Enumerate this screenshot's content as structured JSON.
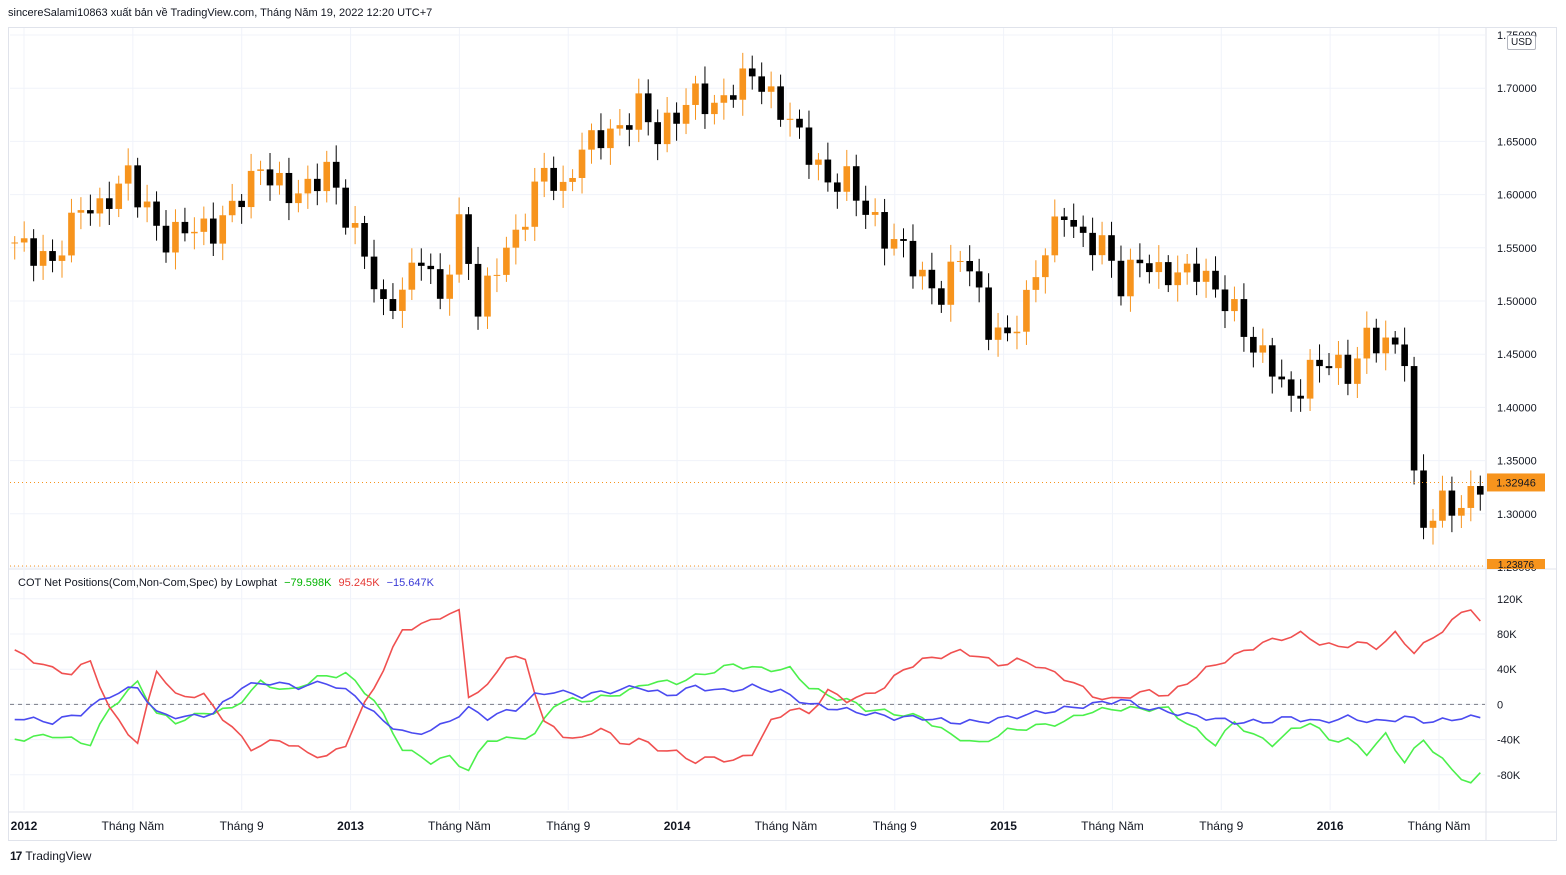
{
  "header": {
    "publisher_line": "sincereSalami10863 xuất bản về TradingView.com, Tháng Năm 19, 2022 12:20 UTC+7"
  },
  "currency_badge": "USD",
  "indicator": {
    "title": "COT Net Positions(Com,Non-Com,Spec) by Lowphat",
    "value_com": "−79.598K",
    "value_noncom": "95.245K",
    "value_spec": "−15.647K"
  },
  "footer": {
    "brand": "TradingView",
    "logo_glyph": "17"
  },
  "colors": {
    "up_candle": "#f7941d",
    "down_candle": "#000000",
    "com_line": "#4cf04c",
    "noncom_line": "#f05050",
    "spec_line": "#4b4bf0",
    "price_tag": "#f7941d",
    "grid": "#f0f3fa"
  },
  "chart_data": [
    {
      "type": "candlestick",
      "title": "",
      "ylim": [
        1.25,
        1.75
      ],
      "y_ticks": [
        "1.75000",
        "1.70000",
        "1.65000",
        "1.60000",
        "1.55000",
        "1.50000",
        "1.45000",
        "1.40000",
        "1.35000",
        "1.30000",
        "1.25000"
      ],
      "last_price_label": "1.32946",
      "last_price": 1.32946,
      "lowest_marker_label": "1.23876",
      "x_labels": [
        "2012",
        "Tháng Năm",
        "Tháng 9",
        "2013",
        "Tháng Năm",
        "Tháng 9",
        "2014",
        "Tháng Năm",
        "Tháng 9",
        "2015",
        "Tháng Năm",
        "Tháng 9",
        "2016",
        "Tháng Năm"
      ],
      "close_path": [
        [
          0,
          1.555
        ],
        [
          4,
          1.535
        ],
        [
          7,
          1.59
        ],
        [
          9,
          1.585
        ],
        [
          12,
          1.62
        ],
        [
          13,
          1.6
        ],
        [
          16,
          1.555
        ],
        [
          18,
          1.57
        ],
        [
          21,
          1.565
        ],
        [
          24,
          1.6
        ],
        [
          26,
          1.625
        ],
        [
          29,
          1.6
        ],
        [
          31,
          1.605
        ],
        [
          33,
          1.625
        ],
        [
          35,
          1.58
        ],
        [
          37,
          1.545
        ],
        [
          39,
          1.49
        ],
        [
          41,
          1.51
        ],
        [
          43,
          1.545
        ],
        [
          45,
          1.5
        ],
        [
          47,
          1.57
        ],
        [
          48,
          1.54
        ],
        [
          49,
          1.49
        ],
        [
          51,
          1.535
        ],
        [
          53,
          1.56
        ],
        [
          56,
          1.625
        ],
        [
          58,
          1.6
        ],
        [
          60,
          1.645
        ],
        [
          62,
          1.655
        ],
        [
          64,
          1.66
        ],
        [
          66,
          1.685
        ],
        [
          68,
          1.655
        ],
        [
          70,
          1.675
        ],
        [
          72,
          1.695
        ],
        [
          74,
          1.68
        ],
        [
          76,
          1.7
        ],
        [
          78,
          1.715
        ],
        [
          80,
          1.69
        ],
        [
          82,
          1.67
        ],
        [
          84,
          1.64
        ],
        [
          86,
          1.61
        ],
        [
          88,
          1.615
        ],
        [
          90,
          1.585
        ],
        [
          92,
          1.56
        ],
        [
          94,
          1.55
        ],
        [
          96,
          1.52
        ],
        [
          98,
          1.505
        ],
        [
          100,
          1.545
        ],
        [
          101,
          1.53
        ],
        [
          103,
          1.475
        ],
        [
          105,
          1.465
        ],
        [
          107,
          1.5
        ],
        [
          109,
          1.55
        ],
        [
          111,
          1.585
        ],
        [
          113,
          1.555
        ],
        [
          115,
          1.555
        ],
        [
          117,
          1.515
        ],
        [
          119,
          1.54
        ],
        [
          121,
          1.525
        ],
        [
          123,
          1.525
        ],
        [
          125,
          1.53
        ],
        [
          127,
          1.51
        ],
        [
          129,
          1.49
        ],
        [
          131,
          1.455
        ],
        [
          133,
          1.44
        ],
        [
          135,
          1.405
        ],
        [
          137,
          1.435
        ],
        [
          139,
          1.445
        ],
        [
          141,
          1.43
        ],
        [
          143,
          1.465
        ],
        [
          145,
          1.46
        ],
        [
          147,
          1.45
        ],
        [
          148,
          1.33
        ],
        [
          149,
          1.29
        ],
        [
          151,
          1.31
        ],
        [
          153,
          1.305
        ],
        [
          155,
          1.33
        ]
      ]
    },
    {
      "type": "line",
      "title": "COT Net Positions(Com,Non-Com,Spec) by Lowphat",
      "ylim": [
        -120,
        130
      ],
      "y_ticks": [
        "120K",
        "80K",
        "40K",
        "0",
        "-40K",
        "-80K"
      ],
      "series": [
        {
          "name": "Com",
          "last_value": -79.598,
          "points": [
            [
              0,
              -40
            ],
            [
              4,
              -35
            ],
            [
              8,
              -45
            ],
            [
              10,
              -5
            ],
            [
              13,
              25
            ],
            [
              15,
              -10
            ],
            [
              17,
              -20
            ],
            [
              20,
              -10
            ],
            [
              23,
              -5
            ],
            [
              26,
              25
            ],
            [
              29,
              15
            ],
            [
              32,
              30
            ],
            [
              35,
              35
            ],
            [
              38,
              5
            ],
            [
              41,
              -50
            ],
            [
              44,
              -65
            ],
            [
              46,
              -60
            ],
            [
              48,
              -75
            ],
            [
              50,
              -40
            ],
            [
              52,
              -40
            ],
            [
              55,
              -35
            ],
            [
              57,
              0
            ],
            [
              59,
              5
            ],
            [
              61,
              5
            ],
            [
              63,
              10
            ],
            [
              65,
              15
            ],
            [
              67,
              25
            ],
            [
              70,
              25
            ],
            [
              73,
              35
            ],
            [
              76,
              45
            ],
            [
              79,
              40
            ],
            [
              82,
              40
            ],
            [
              84,
              20
            ],
            [
              86,
              10
            ],
            [
              88,
              5
            ],
            [
              90,
              -5
            ],
            [
              93,
              -10
            ],
            [
              96,
              -15
            ],
            [
              99,
              -35
            ],
            [
              102,
              -45
            ],
            [
              105,
              -30
            ],
            [
              108,
              -25
            ],
            [
              111,
              -20
            ],
            [
              113,
              -10
            ],
            [
              116,
              -5
            ],
            [
              119,
              -5
            ],
            [
              122,
              -5
            ],
            [
              125,
              -30
            ],
            [
              127,
              -45
            ],
            [
              129,
              -20
            ],
            [
              131,
              -35
            ],
            [
              133,
              -45
            ],
            [
              135,
              -30
            ],
            [
              137,
              -20
            ],
            [
              139,
              -40
            ],
            [
              141,
              -40
            ],
            [
              143,
              -55
            ],
            [
              145,
              -35
            ],
            [
              147,
              -65
            ],
            [
              149,
              -40
            ],
            [
              152,
              -75
            ],
            [
              154,
              -90
            ],
            [
              155,
              -80
            ]
          ]
        },
        {
          "name": "Non-Com",
          "last_value": 95.245,
          "points": [
            [
              0,
              60
            ],
            [
              2,
              50
            ],
            [
              4,
              40
            ],
            [
              6,
              35
            ],
            [
              8,
              50
            ],
            [
              10,
              -5
            ],
            [
              13,
              -45
            ],
            [
              15,
              40
            ],
            [
              17,
              10
            ],
            [
              20,
              10
            ],
            [
              22,
              -15
            ],
            [
              25,
              -50
            ],
            [
              28,
              -40
            ],
            [
              31,
              -55
            ],
            [
              33,
              -60
            ],
            [
              35,
              -45
            ],
            [
              37,
              0
            ],
            [
              39,
              40
            ],
            [
              41,
              85
            ],
            [
              43,
              90
            ],
            [
              45,
              100
            ],
            [
              47,
              105
            ],
            [
              48,
              10
            ],
            [
              50,
              20
            ],
            [
              52,
              55
            ],
            [
              54,
              50
            ],
            [
              56,
              -20
            ],
            [
              58,
              -35
            ],
            [
              60,
              -40
            ],
            [
              62,
              -25
            ],
            [
              64,
              -45
            ],
            [
              66,
              -40
            ],
            [
              68,
              -50
            ],
            [
              70,
              -55
            ],
            [
              72,
              -65
            ],
            [
              74,
              -60
            ],
            [
              76,
              -65
            ],
            [
              78,
              -55
            ],
            [
              80,
              -20
            ],
            [
              82,
              -5
            ],
            [
              84,
              -10
            ],
            [
              86,
              15
            ],
            [
              88,
              5
            ],
            [
              90,
              10
            ],
            [
              92,
              20
            ],
            [
              94,
              40
            ],
            [
              96,
              50
            ],
            [
              98,
              55
            ],
            [
              100,
              60
            ],
            [
              102,
              55
            ],
            [
              104,
              45
            ],
            [
              106,
              50
            ],
            [
              108,
              45
            ],
            [
              110,
              35
            ],
            [
              112,
              25
            ],
            [
              114,
              10
            ],
            [
              116,
              5
            ],
            [
              118,
              10
            ],
            [
              120,
              15
            ],
            [
              122,
              10
            ],
            [
              124,
              25
            ],
            [
              126,
              40
            ],
            [
              128,
              50
            ],
            [
              130,
              60
            ],
            [
              132,
              70
            ],
            [
              134,
              75
            ],
            [
              136,
              80
            ],
            [
              138,
              70
            ],
            [
              140,
              65
            ],
            [
              142,
              70
            ],
            [
              144,
              65
            ],
            [
              146,
              80
            ],
            [
              148,
              60
            ],
            [
              150,
              75
            ],
            [
              152,
              95
            ],
            [
              154,
              110
            ],
            [
              155,
              95
            ]
          ]
        },
        {
          "name": "Spec",
          "last_value": -15.647,
          "points": [
            [
              0,
              -15
            ],
            [
              4,
              -20
            ],
            [
              7,
              -10
            ],
            [
              10,
              10
            ],
            [
              13,
              20
            ],
            [
              15,
              -10
            ],
            [
              18,
              -15
            ],
            [
              21,
              -10
            ],
            [
              24,
              20
            ],
            [
              27,
              25
            ],
            [
              30,
              20
            ],
            [
              33,
              25
            ],
            [
              36,
              10
            ],
            [
              39,
              -20
            ],
            [
              42,
              -35
            ],
            [
              45,
              -25
            ],
            [
              48,
              -5
            ],
            [
              50,
              -15
            ],
            [
              53,
              -5
            ],
            [
              55,
              10
            ],
            [
              57,
              15
            ],
            [
              60,
              10
            ],
            [
              63,
              15
            ],
            [
              66,
              20
            ],
            [
              69,
              10
            ],
            [
              72,
              20
            ],
            [
              75,
              15
            ],
            [
              78,
              20
            ],
            [
              81,
              15
            ],
            [
              84,
              0
            ],
            [
              87,
              -5
            ],
            [
              90,
              -10
            ],
            [
              93,
              -15
            ],
            [
              96,
              -15
            ],
            [
              99,
              -20
            ],
            [
              102,
              -20
            ],
            [
              105,
              -15
            ],
            [
              108,
              -10
            ],
            [
              111,
              -5
            ],
            [
              114,
              0
            ],
            [
              117,
              5
            ],
            [
              120,
              -5
            ],
            [
              123,
              -10
            ],
            [
              126,
              -15
            ],
            [
              129,
              -20
            ],
            [
              132,
              -20
            ],
            [
              135,
              -15
            ],
            [
              138,
              -20
            ],
            [
              141,
              -15
            ],
            [
              144,
              -20
            ],
            [
              147,
              -15
            ],
            [
              150,
              -20
            ],
            [
              153,
              -15
            ],
            [
              155,
              -15
            ]
          ]
        }
      ]
    }
  ]
}
